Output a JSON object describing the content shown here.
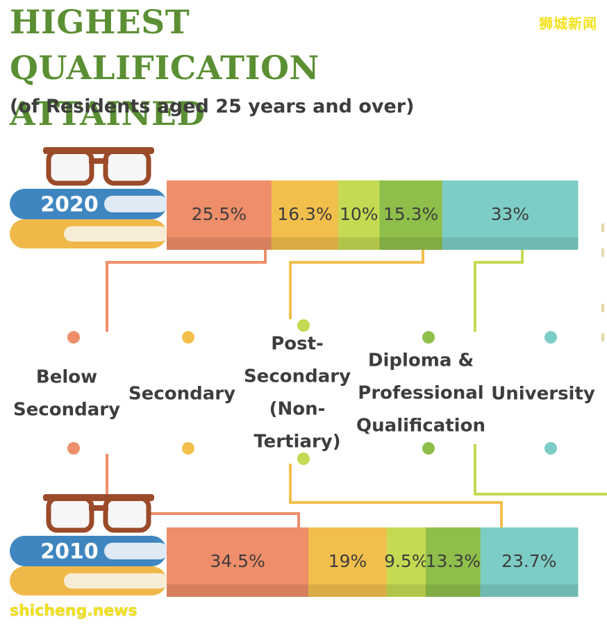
{
  "title": "HIGHEST QUALIFICATION ATTAINED",
  "subtitle": "(of Residents aged 25 years and over)",
  "watermark_cn": "狮城新闻",
  "watermark_en": "shicheng.news",
  "colors": {
    "title": "#5b8f33",
    "below_secondary": "#ef8e6a",
    "secondary": "#f2bf4c",
    "post_secondary": "#c5da52",
    "diploma": "#8fbf4a",
    "university": "#7ccdc5",
    "book_blue": "#3f86c0",
    "book_yellow": "#f0b848",
    "glasses": "#9b4a2a"
  },
  "chart_data": {
    "type": "bar",
    "orientation": "horizontal-stacked",
    "unit": "%",
    "categories": [
      "Below Secondary",
      "Secondary",
      "Post-Secondary (Non-Tertiary)",
      "Diploma & Professional Qualification",
      "University"
    ],
    "series": [
      {
        "name": "2020",
        "values": [
          25.5,
          16.3,
          10,
          15.3,
          33
        ],
        "labels": [
          "25.5%",
          "16.3%",
          "10%",
          "15.3%",
          "33%"
        ]
      },
      {
        "name": "2010",
        "values": [
          34.5,
          19,
          9.5,
          13.3,
          23.7
        ],
        "labels": [
          "34.5%",
          "19%",
          "9.5%",
          "13.3%",
          "23.7%"
        ]
      }
    ],
    "legend_lines": [
      [
        "Below",
        "Secondary"
      ],
      [
        "Secondary"
      ],
      [
        "Post-",
        "Secondary",
        "(Non-",
        "Tertiary)"
      ],
      [
        "Diploma &",
        "Professional",
        "Qualification"
      ],
      [
        "University"
      ]
    ]
  }
}
